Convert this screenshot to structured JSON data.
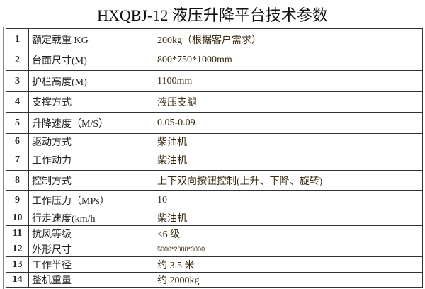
{
  "title": "HXQBJ-12 液压升降平台技术参数",
  "rows": [
    {
      "no": "1",
      "name": "额定载重 KG",
      "value": "200kg（根据客户需求）"
    },
    {
      "no": "2",
      "name": "台面尺寸(M)",
      "value": "800*750*1000mm"
    },
    {
      "no": "3",
      "name": "护栏高度(M)",
      "value": "1100mm"
    },
    {
      "no": "4",
      "name": "支撑方式",
      "value": "液压支腿"
    },
    {
      "no": "5",
      "name": "升降速度（M/S）",
      "value": "0.05-0.09"
    },
    {
      "no": "6",
      "name": "驱动方式",
      "value": "柴油机"
    },
    {
      "no": "7",
      "name": "工作动力",
      "value": "柴油机"
    },
    {
      "no": "8",
      "name": "控制方式",
      "value": "上下双向按钮控制(上升、下降、旋转)"
    },
    {
      "no": "9",
      "name": "工作压力（MPs）",
      "value": "10"
    },
    {
      "no": "10",
      "name": "行走速度(km/h",
      "value": "柴油机"
    },
    {
      "no": "11",
      "name": "抗风等级",
      "value": "≤6 级"
    },
    {
      "no": "12",
      "name": "外形尺寸",
      "value": "5000*2000*3000"
    },
    {
      "no": "13",
      "name": "工作半径",
      "value": "约 3.5 米"
    },
    {
      "no": "14",
      "name": "整机重量",
      "value": "约 2000kg"
    }
  ]
}
